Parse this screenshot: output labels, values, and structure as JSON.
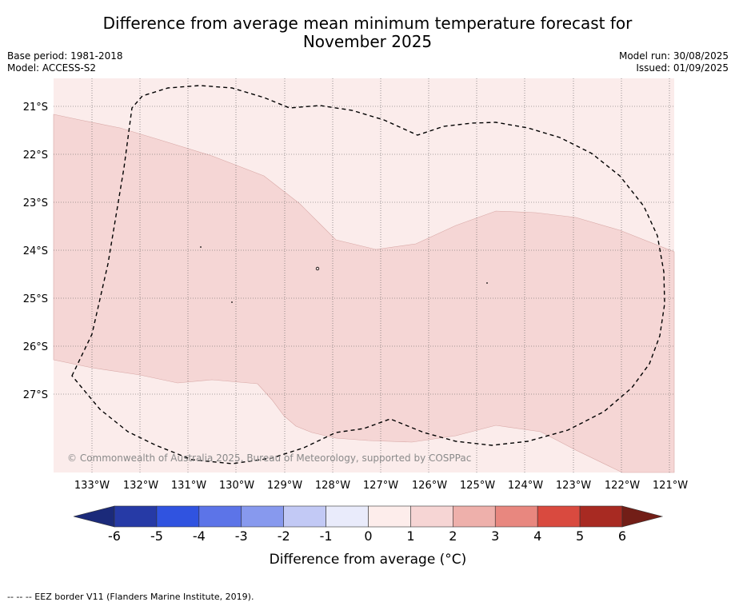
{
  "title_line1": "Difference from average mean minimum temperature forecast for",
  "title_line2": "November 2025",
  "base_period": "Base period: 1981-2018",
  "model": "Model: ACCESS-S2",
  "model_run": "Model run: 30/08/2025",
  "issued": "Issued: 01/09/2025",
  "copyright": "© Commonwealth of Australia 2025, Bureau of Meteorology, supported by COSPPac",
  "latitudes": [
    "21°S",
    "22°S",
    "23°S",
    "24°S",
    "25°S",
    "26°S",
    "27°S"
  ],
  "longitudes": [
    "133°W",
    "132°W",
    "131°W",
    "130°W",
    "129°W",
    "128°W",
    "127°W",
    "126°W",
    "125°W",
    "124°W",
    "123°W",
    "122°W",
    "121°W"
  ],
  "colorbar": {
    "ticks": [
      "-6",
      "-5",
      "-4",
      "-3",
      "-2",
      "-1",
      "0",
      "1",
      "2",
      "3",
      "4",
      "5",
      "6"
    ],
    "colors": [
      "#263aa6",
      "#3053e0",
      "#5c74e8",
      "#8799ee",
      "#c2c9f5",
      "#e9ebfb",
      "#fdedeb",
      "#f6d5d4",
      "#eeb0ab",
      "#e8877f",
      "#d94a3f",
      "#a82a22"
    ],
    "under_color": "#1b2a7a",
    "over_color": "#721e17",
    "label": "Difference from average (°C)"
  },
  "legend_note": "--  --  -- EEZ border V11 (Flanders Marine Institute, 2019)."
}
